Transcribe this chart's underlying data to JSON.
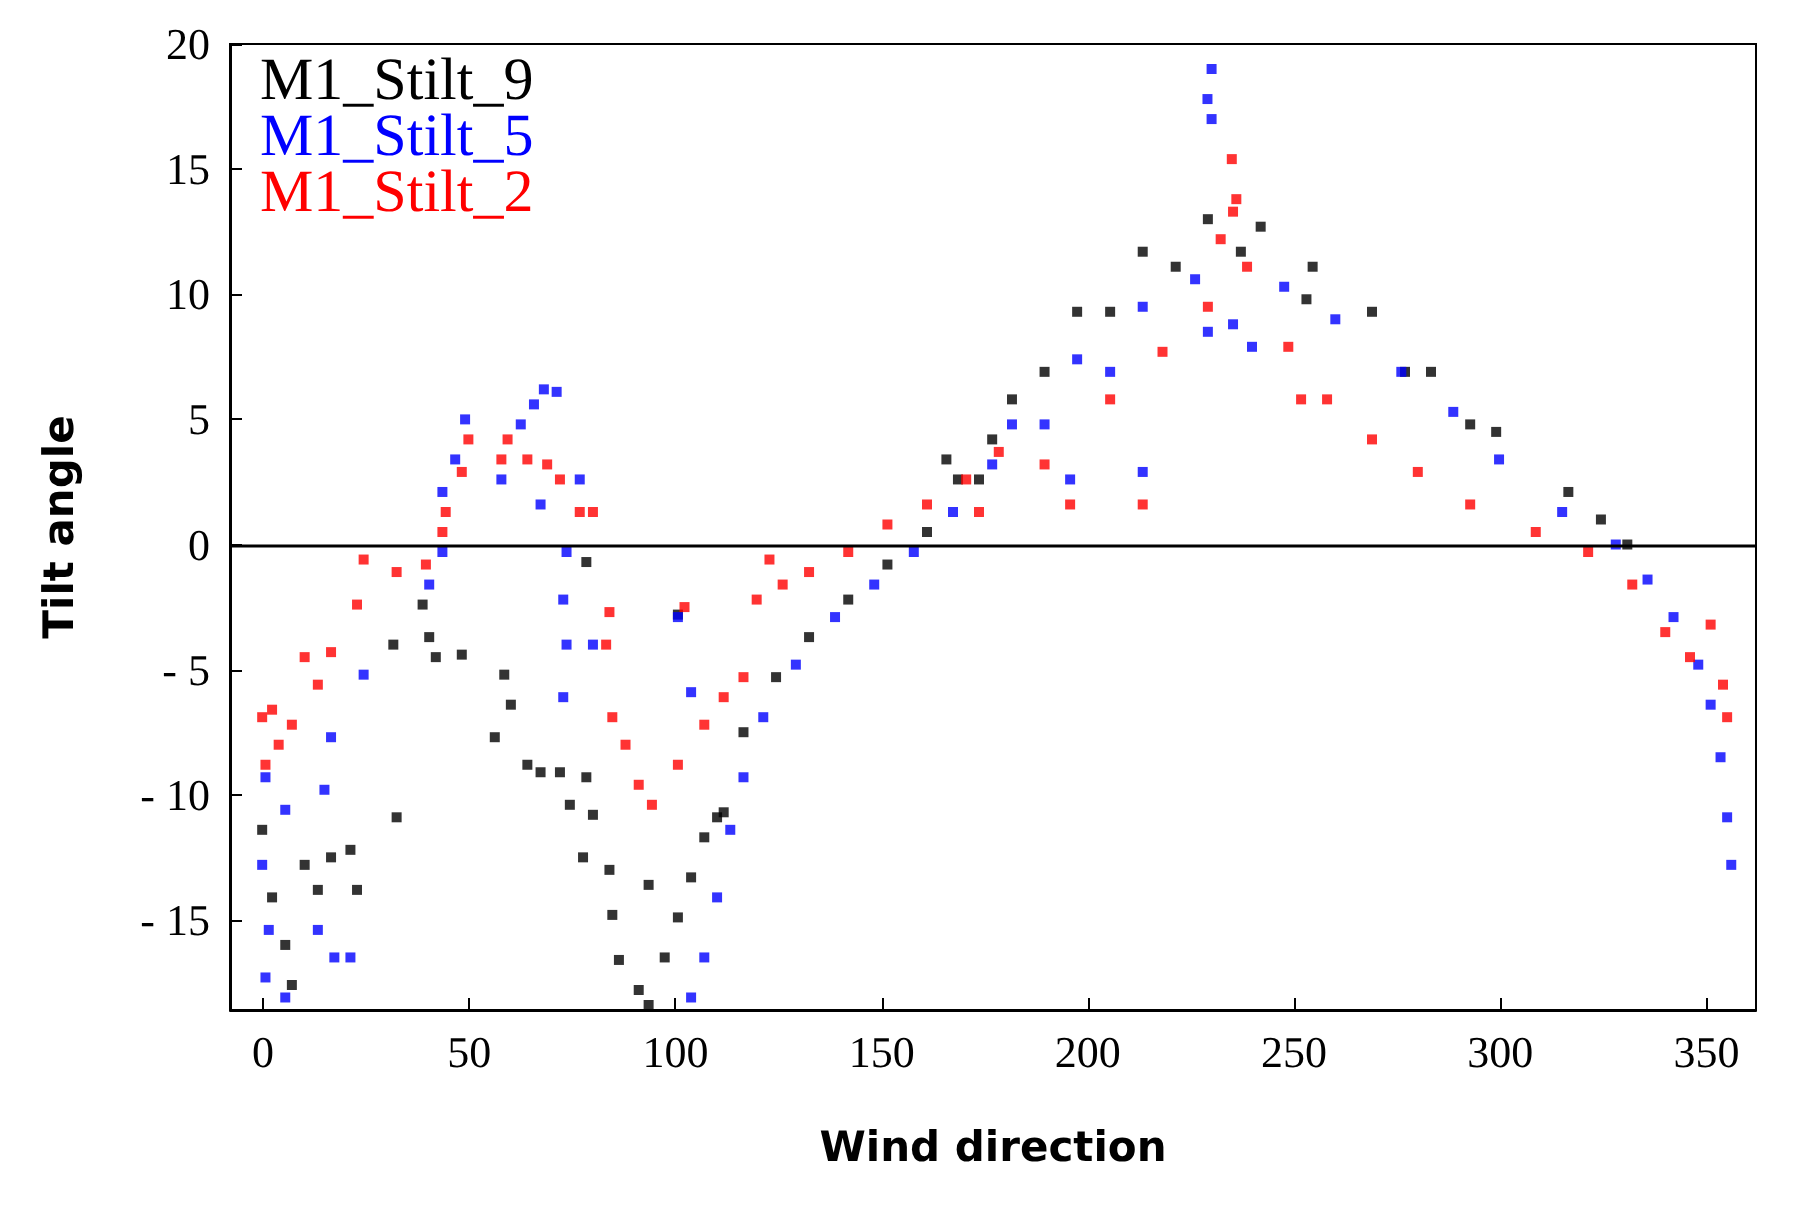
{
  "chart_data": {
    "type": "scatter",
    "xlabel": "Wind direction",
    "ylabel": "Tilt angle",
    "xlim": [
      -8,
      362
    ],
    "ylim": [
      -18.6,
      20
    ],
    "xticks": [
      0,
      50,
      100,
      150,
      200,
      250,
      300,
      350
    ],
    "yticks": [
      {
        "value": -15,
        "label": "- 15"
      },
      {
        "value": -10,
        "label": "- 10"
      },
      {
        "value": -5,
        "label": "- 5"
      },
      0,
      5,
      10,
      15,
      20
    ],
    "grid": false,
    "legend": "top left",
    "marker": "square",
    "ref_lines": [
      {
        "axis": "y",
        "value": 0,
        "color": "#000000"
      }
    ],
    "series": [
      {
        "name": "M1_Stilt_9",
        "color": "#000000",
        "x": [
          -0.2,
          2.2,
          5.4,
          7,
          10.1,
          13.3,
          16.5,
          21.2,
          22.8,
          32.4,
          31.6,
          38.7,
          40.3,
          41.9,
          48.2,
          58.5,
          56.2,
          60.1,
          64.1,
          67.3,
          72,
          74.4,
          78.4,
          80,
          77.6,
          84,
          93.5,
          84.7,
          86.3,
          91.1,
          93.5,
          97.4,
          100.6,
          103.8,
          107,
          110.1,
          100.6,
          78.4,
          111.7,
          116.5,
          124.4,
          132.4,
          141.9,
          151.4,
          161,
          168.5,
          176.8,
          165.7,
          181.6,
          197.4,
          213.3,
          229.1,
          241.9,
          254.5,
          268.9,
          283.2,
          299,
          316.5,
          330.8,
          173.6,
          189.5,
          205.4,
          221.3,
          237.1,
          253,
          276.9,
          292.7,
          324.4
        ],
        "values": [
          -11.4,
          -14.1,
          -16,
          -17.6,
          -12.8,
          -13.8,
          -12.5,
          -12.2,
          -13.8,
          -10.9,
          -4,
          -2.4,
          -3.7,
          -4.5,
          -4.4,
          -5.2,
          -7.7,
          -6.4,
          -8.8,
          -9.1,
          -9.1,
          -10.4,
          -9.3,
          -10.8,
          -12.5,
          -13,
          -13.6,
          -14.8,
          -16.6,
          -17.8,
          -18.4,
          -16.5,
          -14.9,
          -13.3,
          -11.7,
          -10.9,
          -2.8,
          -0.7,
          -10.7,
          -7.5,
          -5.3,
          -3.7,
          -2.2,
          -0.8,
          0.5,
          2.6,
          4.2,
          3.4,
          5.8,
          9.3,
          11.7,
          13,
          12.7,
          11.1,
          9.3,
          6.9,
          4.5,
          2.1,
          0,
          2.6,
          6.9,
          9.3,
          11.1,
          11.7,
          9.8,
          6.9,
          4.8,
          1
        ]
      },
      {
        "name": "M1_Stilt_5",
        "color": "#0000ff",
        "x": [
          0.6,
          -0.2,
          1.4,
          0.6,
          5.4,
          5.4,
          14.9,
          13.3,
          17.3,
          21.2,
          16.5,
          24.4,
          40.3,
          43.5,
          43.5,
          46.6,
          49,
          57.8,
          62.5,
          65.7,
          68.1,
          71.2,
          76.8,
          67.3,
          73.6,
          72.8,
          73.6,
          80,
          72.8,
          103.8,
          100.6,
          103.8,
          107,
          110.1,
          113.3,
          116.5,
          121.3,
          129.2,
          138.7,
          148.2,
          157.8,
          167.3,
          176.8,
          181.6,
          197.4,
          213.3,
          226,
          229.1,
          235.2,
          239.8,
          247.6,
          260,
          276,
          288.6,
          299.7,
          315,
          328,
          335.7,
          342,
          348,
          351,
          353.4,
          355,
          356,
          230,
          229,
          230,
          195.7,
          213.3,
          189.5,
          205.4
        ],
        "values": [
          -9.3,
          -12.8,
          -15.4,
          -17.3,
          -18.1,
          -10.6,
          -9.8,
          -15.4,
          -16.5,
          -16.5,
          -7.7,
          -5.2,
          -1.6,
          -0.3,
          2.1,
          3.4,
          5,
          2.6,
          4.8,
          5.6,
          6.2,
          6.1,
          2.6,
          1.6,
          -0.3,
          -2.2,
          -4,
          -4,
          -6.1,
          -5.9,
          -2.9,
          -18.1,
          -16.5,
          -14.1,
          -11.4,
          -9.3,
          -6.9,
          -4.8,
          -2.9,
          -1.6,
          -0.3,
          1.3,
          3.2,
          4.8,
          7.4,
          9.5,
          10.6,
          8.5,
          8.8,
          7.9,
          10.3,
          9,
          6.9,
          5.3,
          3.4,
          1.3,
          0,
          -1.4,
          -2.9,
          -4.8,
          -6.4,
          -8.5,
          -10.9,
          -12.8,
          19,
          17.8,
          17,
          2.6,
          2.9,
          4.8,
          6.9
        ]
      },
      {
        "name": "M1_Stilt_2",
        "color": "#ff0000",
        "x": [
          -0.2,
          0.6,
          3.8,
          2.2,
          7,
          10.1,
          13.3,
          16.5,
          22.8,
          24.4,
          32.4,
          39.5,
          43.5,
          44.3,
          48.2,
          49.8,
          57.8,
          59.3,
          64.1,
          68.9,
          72,
          76.8,
          80,
          84,
          83.2,
          84.7,
          87.9,
          91.1,
          94.3,
          100.6,
          107,
          111.7,
          102.2,
          116.5,
          119.7,
          122.8,
          126,
          132.4,
          141.9,
          151.4,
          161,
          170.5,
          178.4,
          173.6,
          189.5,
          205.4,
          218.1,
          229.1,
          232.2,
          235.2,
          234.9,
          236,
          238.6,
          248.6,
          258,
          268.9,
          280,
          292.7,
          308.6,
          321.3,
          332,
          340,
          346,
          351,
          354,
          355,
          195.7,
          213.3,
          251.7
        ],
        "values": [
          -6.9,
          -8.8,
          -8,
          -6.6,
          -7.2,
          -4.5,
          -5.6,
          -4.3,
          -2.4,
          -0.6,
          -1.1,
          -0.8,
          0.5,
          1.3,
          2.9,
          4.2,
          3.4,
          4.2,
          3.4,
          3.2,
          2.6,
          1.3,
          1.3,
          -2.7,
          -4,
          -6.9,
          -8,
          -9.6,
          -10.4,
          -8.8,
          -7.2,
          -6.1,
          -2.5,
          -5.3,
          -2.2,
          -0.6,
          -1.6,
          -1.1,
          -0.3,
          0.8,
          1.6,
          2.6,
          3.7,
          1.3,
          3.2,
          5.8,
          7.7,
          9.5,
          12.2,
          13.3,
          15.4,
          13.8,
          11.1,
          7.9,
          5.8,
          4.2,
          2.9,
          1.6,
          0.5,
          -0.3,
          -1.6,
          -3.5,
          -4.5,
          -3.2,
          -5.6,
          -6.9,
          1.6,
          1.6,
          5.8
        ]
      }
    ]
  }
}
